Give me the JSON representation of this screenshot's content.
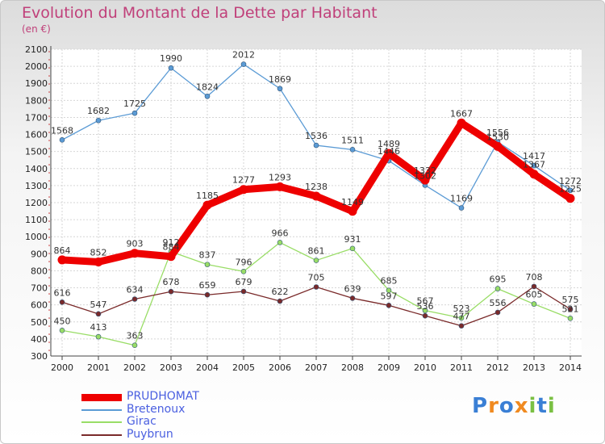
{
  "title": "Evolution du Montant de la Dette par Habitant",
  "subtitle": "(en €)",
  "logo": {
    "letters": [
      "P",
      "r",
      "o",
      "x",
      "i",
      "t",
      "i"
    ],
    "colors": [
      "#3a7fd5",
      "#f08a20",
      "#3a7fd5",
      "#f08a20",
      "#7ac043",
      "#3a7fd5",
      "#7ac043"
    ]
  },
  "chart_data": {
    "type": "line",
    "x": [
      "2000",
      "2001",
      "2002",
      "2003",
      "2004",
      "2005",
      "2006",
      "2007",
      "2008",
      "2009",
      "2010",
      "2011",
      "2012",
      "2013",
      "2014"
    ],
    "ylim": [
      300,
      2100
    ],
    "yticks": [
      "300",
      "400",
      "500",
      "600",
      "700",
      "800",
      "900",
      "1000",
      "1100",
      "1200",
      "1300",
      "1400",
      "1500",
      "1600",
      "1700",
      "1800",
      "1900",
      "2000",
      "2100"
    ],
    "grid": true,
    "legend_position": "bottom-left",
    "series": [
      {
        "name": "PRUDHOMAT",
        "color": "#ee0000",
        "values": [
          864,
          852,
          903,
          884,
          1185,
          1277,
          1293,
          1238,
          1149,
          1489,
          1332,
          1667,
          1530,
          1367,
          1225
        ],
        "labels": [
          "864",
          "852",
          "903",
          "884",
          "1185",
          "1277",
          "1293",
          "1238",
          "1149",
          "1489",
          "1332",
          "1667",
          "1530",
          "1367",
          "1225"
        ]
      },
      {
        "name": "Bretenoux",
        "color": "#5b9bd5",
        "values": [
          1568,
          1682,
          1725,
          1990,
          1824,
          2012,
          1869,
          1536,
          1511,
          1446,
          1302,
          1169,
          1556,
          1417,
          1272
        ],
        "labels": [
          "1568",
          "1682",
          "1725",
          "1990",
          "1824",
          "2012",
          "1869",
          "1536",
          "1511",
          "1446",
          "1302",
          "1169",
          "1556",
          "1417",
          "1272"
        ]
      },
      {
        "name": "Girac",
        "color": "#99dd66",
        "values": [
          450,
          413,
          363,
          912,
          837,
          796,
          966,
          861,
          931,
          685,
          567,
          523,
          695,
          605,
          521
        ],
        "labels": [
          "450",
          "413",
          "363",
          "912",
          "837",
          "796",
          "966",
          "861",
          "931",
          "685",
          "567",
          "523",
          "695",
          "605",
          "521"
        ]
      },
      {
        "name": "Puybrun",
        "color": "#7a2a2a",
        "values": [
          616,
          547,
          634,
          678,
          659,
          679,
          622,
          705,
          639,
          597,
          536,
          477,
          556,
          708,
          575
        ],
        "labels": [
          "616",
          "547",
          "634",
          "678",
          "659",
          "679",
          "622",
          "705",
          "639",
          "597",
          "536",
          "477",
          "556",
          "708",
          "575"
        ]
      }
    ]
  }
}
